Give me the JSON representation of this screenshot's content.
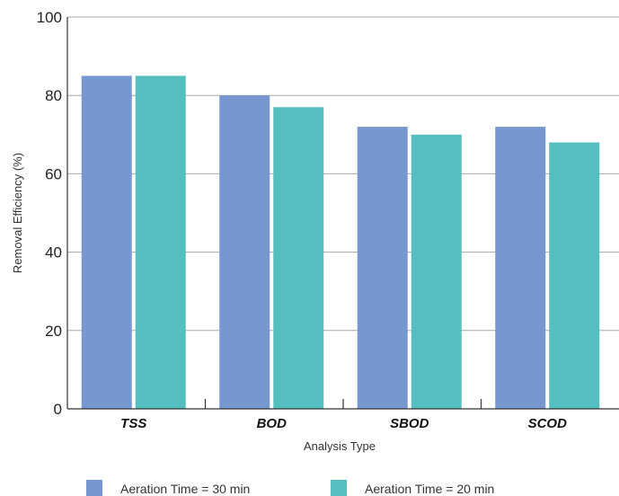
{
  "chart_data": {
    "type": "bar",
    "categories": [
      "TSS",
      "BOD",
      "SBOD",
      "SCOD"
    ],
    "series": [
      {
        "name": "Aeration Time = 30 min",
        "values": [
          85,
          80,
          72,
          72
        ],
        "color": "#7797d1"
      },
      {
        "name": "Aeration Time = 20 min",
        "values": [
          85,
          77,
          70,
          68
        ],
        "color": "#55bfbf"
      }
    ],
    "xlabel": "Analysis Type",
    "ylabel": "Removal Efficiency (%)",
    "ylim": [
      0,
      100
    ],
    "yticks": [
      0,
      20,
      40,
      60,
      80,
      100
    ],
    "grid": "horizontal",
    "legend_position": "bottom"
  }
}
